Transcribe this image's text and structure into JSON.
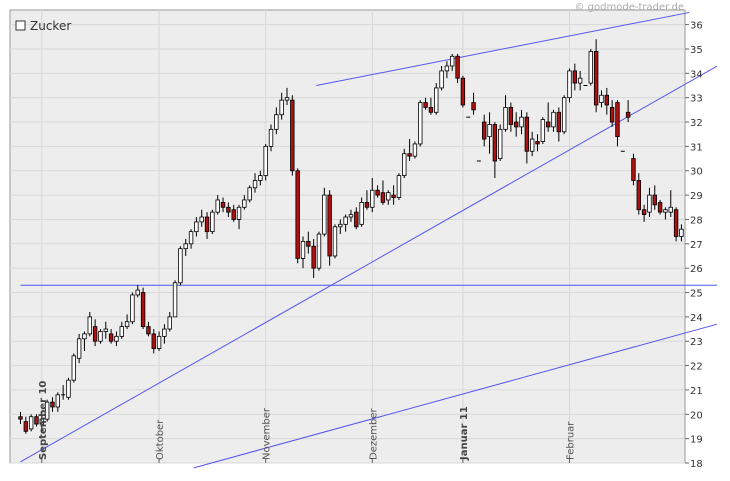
{
  "watermark": "© godmode-trader.de",
  "chart_data": {
    "type": "candlestick",
    "title": "Zucker",
    "ylim": [
      18,
      36.6
    ],
    "yticks": [
      18,
      19,
      20,
      21,
      22,
      23,
      24,
      25,
      26,
      27,
      28,
      29,
      30,
      31,
      32,
      33,
      34,
      35,
      36
    ],
    "x_ticks": [
      {
        "label": "September 10",
        "index": 4,
        "bold": true
      },
      {
        "label": "Oktober",
        "index": 26,
        "bold": false
      },
      {
        "label": "November",
        "index": 46,
        "bold": false
      },
      {
        "label": "Dezember",
        "index": 66,
        "bold": false
      },
      {
        "label": "Januar 11",
        "index": 83,
        "bold": true
      },
      {
        "label": "Februar",
        "index": 103,
        "bold": false
      }
    ],
    "candles": [
      [
        19.9,
        20.1,
        19.6,
        19.8
      ],
      [
        19.7,
        19.9,
        19.2,
        19.3
      ],
      [
        19.4,
        20.0,
        19.3,
        19.9
      ],
      [
        19.9,
        20.0,
        19.5,
        19.6
      ],
      [
        19.6,
        20.1,
        19.3,
        19.8
      ],
      [
        19.8,
        20.6,
        19.7,
        20.5
      ],
      [
        20.5,
        20.7,
        20.1,
        20.3
      ],
      [
        20.3,
        20.9,
        20.1,
        20.8
      ],
      [
        20.8,
        21.2,
        20.6,
        20.8
      ],
      [
        20.7,
        21.5,
        20.6,
        21.4
      ],
      [
        21.4,
        22.5,
        21.3,
        22.4
      ],
      [
        22.3,
        23.3,
        22.1,
        23.1
      ],
      [
        23.1,
        23.4,
        22.6,
        23.3
      ],
      [
        23.3,
        24.2,
        23.2,
        24.0
      ],
      [
        23.6,
        23.9,
        22.8,
        23.0
      ],
      [
        23.0,
        23.5,
        22.9,
        23.4
      ],
      [
        23.4,
        23.8,
        23.1,
        23.5
      ],
      [
        23.3,
        23.5,
        22.9,
        23.0
      ],
      [
        23.0,
        23.4,
        22.8,
        23.2
      ],
      [
        23.2,
        23.8,
        23.1,
        23.6
      ],
      [
        23.6,
        24.1,
        23.5,
        23.8
      ],
      [
        23.8,
        25.0,
        23.7,
        24.9
      ],
      [
        24.9,
        25.3,
        24.8,
        25.1
      ],
      [
        25.0,
        25.2,
        23.5,
        23.6
      ],
      [
        23.6,
        23.8,
        23.2,
        23.3
      ],
      [
        23.3,
        23.5,
        22.5,
        22.7
      ],
      [
        22.7,
        23.4,
        22.6,
        23.2
      ],
      [
        23.2,
        23.7,
        22.9,
        23.5
      ],
      [
        23.5,
        24.2,
        23.4,
        24.0
      ],
      [
        24.0,
        25.5,
        24.0,
        25.4
      ],
      [
        25.4,
        26.9,
        25.3,
        26.8
      ],
      [
        26.8,
        27.2,
        26.5,
        27.0
      ],
      [
        27.0,
        27.6,
        26.8,
        27.5
      ],
      [
        27.5,
        28.1,
        27.3,
        27.9
      ],
      [
        27.9,
        28.4,
        27.7,
        28.1
      ],
      [
        28.1,
        28.3,
        27.2,
        27.5
      ],
      [
        27.5,
        28.4,
        27.4,
        28.3
      ],
      [
        28.3,
        29.0,
        28.2,
        28.8
      ],
      [
        28.7,
        28.9,
        28.3,
        28.5
      ],
      [
        28.5,
        28.7,
        28.1,
        28.3
      ],
      [
        28.4,
        28.6,
        27.9,
        28.0
      ],
      [
        28.0,
        28.6,
        27.6,
        28.5
      ],
      [
        28.5,
        29.0,
        28.4,
        28.8
      ],
      [
        28.8,
        29.4,
        28.7,
        29.3
      ],
      [
        29.3,
        29.9,
        29.1,
        29.6
      ],
      [
        29.6,
        30.0,
        29.4,
        29.8
      ],
      [
        29.8,
        31.1,
        29.6,
        31.0
      ],
      [
        31.0,
        31.9,
        30.8,
        31.7
      ],
      [
        31.7,
        32.6,
        31.5,
        32.3
      ],
      [
        32.3,
        33.2,
        32.1,
        32.9
      ],
      [
        32.9,
        33.4,
        32.7,
        33.0
      ],
      [
        32.9,
        33.1,
        29.8,
        30.0
      ],
      [
        30.0,
        30.1,
        26.2,
        26.4
      ],
      [
        26.4,
        27.3,
        26.0,
        27.1
      ],
      [
        27.1,
        27.5,
        26.6,
        26.9
      ],
      [
        26.9,
        27.2,
        25.6,
        26.0
      ],
      [
        26.0,
        27.5,
        25.9,
        27.4
      ],
      [
        27.4,
        29.3,
        27.3,
        29.0
      ],
      [
        29.0,
        29.2,
        26.1,
        26.5
      ],
      [
        26.5,
        27.8,
        26.4,
        27.7
      ],
      [
        27.7,
        28.0,
        27.4,
        27.8
      ],
      [
        27.8,
        28.2,
        27.5,
        28.1
      ],
      [
        28.1,
        28.4,
        27.9,
        28.2
      ],
      [
        28.3,
        28.5,
        27.6,
        27.7
      ],
      [
        27.8,
        28.9,
        27.7,
        28.7
      ],
      [
        28.7,
        29.2,
        28.4,
        28.5
      ],
      [
        28.5,
        29.7,
        28.3,
        29.2
      ],
      [
        29.2,
        29.4,
        28.9,
        29.0
      ],
      [
        29.1,
        29.6,
        28.6,
        28.7
      ],
      [
        28.8,
        29.2,
        28.6,
        29.1
      ],
      [
        29.0,
        29.4,
        28.6,
        28.9
      ],
      [
        28.9,
        29.9,
        28.8,
        29.8
      ],
      [
        29.8,
        30.9,
        29.7,
        30.7
      ],
      [
        30.7,
        31.3,
        30.4,
        30.6
      ],
      [
        30.6,
        31.2,
        30.5,
        31.1
      ],
      [
        31.1,
        32.9,
        31.0,
        32.8
      ],
      [
        32.8,
        33.0,
        32.5,
        32.6
      ],
      [
        32.6,
        33.0,
        32.3,
        32.4
      ],
      [
        32.4,
        33.6,
        32.3,
        33.4
      ],
      [
        33.4,
        34.3,
        33.3,
        34.1
      ],
      [
        34.1,
        34.5,
        33.8,
        34.3
      ],
      [
        34.3,
        34.8,
        34.1,
        34.7
      ],
      [
        34.7,
        34.8,
        33.6,
        33.8
      ],
      [
        33.8,
        33.9,
        32.6,
        32.7
      ],
      [
        32.2,
        32.2,
        32.2,
        32.2
      ],
      [
        32.8,
        33.2,
        32.3,
        32.5
      ],
      [
        30.4,
        30.4,
        30.4,
        30.4
      ],
      [
        32.0,
        32.3,
        31.0,
        31.3
      ],
      [
        31.4,
        32.4,
        30.7,
        31.9
      ],
      [
        31.9,
        32.0,
        29.7,
        30.4
      ],
      [
        30.5,
        31.9,
        30.4,
        31.7
      ],
      [
        31.7,
        33.1,
        31.6,
        32.6
      ],
      [
        32.6,
        32.8,
        31.6,
        31.9
      ],
      [
        32.0,
        32.4,
        31.4,
        31.8
      ],
      [
        31.8,
        32.5,
        31.5,
        32.2
      ],
      [
        32.2,
        32.4,
        30.3,
        30.8
      ],
      [
        30.8,
        31.6,
        30.6,
        31.3
      ],
      [
        31.2,
        31.5,
        30.8,
        31.1
      ],
      [
        31.2,
        32.2,
        31.1,
        32.1
      ],
      [
        32.0,
        32.8,
        31.6,
        31.8
      ],
      [
        31.8,
        32.5,
        31.6,
        32.4
      ],
      [
        32.4,
        32.6,
        31.2,
        31.6
      ],
      [
        31.6,
        33.1,
        31.5,
        33.0
      ],
      [
        33.0,
        34.2,
        32.8,
        34.1
      ],
      [
        34.1,
        34.4,
        33.3,
        33.6
      ],
      [
        33.6,
        34.1,
        33.3,
        33.8
      ],
      [
        33.5,
        33.5,
        33.5,
        33.5
      ],
      [
        33.6,
        35.0,
        33.5,
        34.9
      ],
      [
        34.9,
        35.4,
        32.4,
        32.7
      ],
      [
        32.8,
        33.3,
        32.6,
        33.1
      ],
      [
        33.1,
        33.4,
        32.3,
        32.7
      ],
      [
        32.6,
        32.9,
        31.8,
        32.0
      ],
      [
        32.8,
        32.9,
        31.0,
        31.4
      ],
      [
        30.8,
        30.8,
        30.8,
        30.8
      ],
      [
        32.4,
        32.9,
        32.0,
        32.2
      ],
      [
        30.5,
        30.7,
        29.4,
        29.6
      ],
      [
        29.6,
        29.9,
        28.2,
        28.4
      ],
      [
        28.4,
        28.6,
        27.9,
        28.2
      ],
      [
        28.3,
        29.3,
        28.1,
        29.0
      ],
      [
        29.0,
        29.4,
        28.4,
        28.6
      ],
      [
        28.7,
        28.8,
        28.2,
        28.3
      ],
      [
        28.3,
        28.5,
        28.0,
        28.4
      ],
      [
        28.3,
        29.2,
        28.1,
        28.5
      ],
      [
        28.4,
        28.5,
        27.1,
        27.3
      ],
      [
        27.3,
        27.8,
        27.1,
        27.6
      ]
    ],
    "lines": [
      {
        "name": "horizontal-support",
        "points": [
          [
            0,
            25.3
          ],
          [
            130.7,
            25.3
          ]
        ]
      },
      {
        "name": "upper-trendline",
        "points": [
          [
            55.5,
            33.5
          ],
          [
            125.5,
            36.5
          ]
        ]
      },
      {
        "name": "rising-trendline",
        "points": [
          [
            0,
            18.05
          ],
          [
            130.7,
            34.3
          ]
        ]
      },
      {
        "name": "lower-trendline",
        "points": [
          [
            32.5,
            17.8
          ],
          [
            130.7,
            23.7
          ]
        ]
      }
    ],
    "colors": {
      "up": "#ffffff",
      "down": "#aa1111",
      "wick": "#000000",
      "line": "#5555ee",
      "grid": "#d8d8d8",
      "plot_bg": "#ededed"
    }
  }
}
